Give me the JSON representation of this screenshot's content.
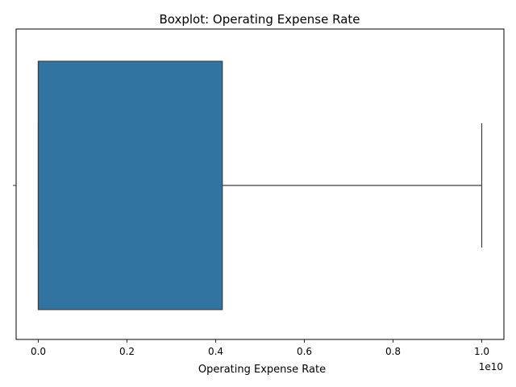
{
  "chart_data": {
    "type": "boxplot",
    "title": "Boxplot:  Operating Expense Rate",
    "xlabel": "Operating Expense Rate",
    "ylabel": "",
    "offset_label": "1e10",
    "xlim": [
      -0.05,
      1.05
    ],
    "x_ticks": [
      0.0,
      0.2,
      0.4,
      0.6,
      0.8,
      1.0
    ],
    "x_tick_labels": [
      "0.0",
      "0.2",
      "0.4",
      "0.6",
      "0.8",
      "1.0"
    ],
    "box": {
      "min": 0.0,
      "q1": 0.0,
      "median": 0.0,
      "q3": 0.415,
      "max": 1.0
    },
    "grid": false,
    "colors": {
      "box_fill": "#3274a1",
      "line": "#3f3f3f"
    }
  }
}
